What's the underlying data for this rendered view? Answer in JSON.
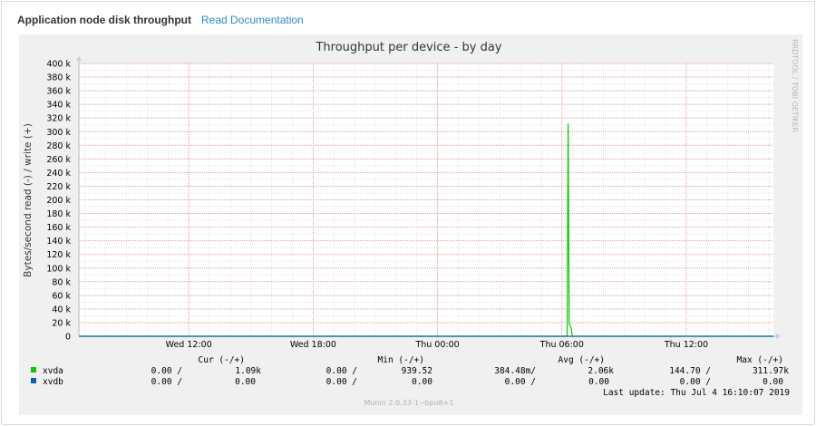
{
  "header": {
    "title": "Application node disk throughput",
    "doc_link": "Read Documentation"
  },
  "chart_data": {
    "type": "line",
    "title": "Throughput per device - by day",
    "ylabel": "Bytes/second read (-) / write (+)",
    "ylim": [
      0,
      400000
    ],
    "y_ticks": [
      {
        "value": 0,
        "label": "0"
      },
      {
        "value": 20000,
        "label": "20 k"
      },
      {
        "value": 40000,
        "label": "40 k"
      },
      {
        "value": 60000,
        "label": "60 k"
      },
      {
        "value": 80000,
        "label": "80 k"
      },
      {
        "value": 100000,
        "label": "100 k"
      },
      {
        "value": 120000,
        "label": "120 k"
      },
      {
        "value": 140000,
        "label": "140 k"
      },
      {
        "value": 160000,
        "label": "160 k"
      },
      {
        "value": 180000,
        "label": "180 k"
      },
      {
        "value": 200000,
        "label": "200 k"
      },
      {
        "value": 220000,
        "label": "220 k"
      },
      {
        "value": 240000,
        "label": "240 k"
      },
      {
        "value": 260000,
        "label": "260 k"
      },
      {
        "value": 280000,
        "label": "280 k"
      },
      {
        "value": 300000,
        "label": "300 k"
      },
      {
        "value": 320000,
        "label": "320 k"
      },
      {
        "value": 340000,
        "label": "340 k"
      },
      {
        "value": 360000,
        "label": "360 k"
      },
      {
        "value": 380000,
        "label": "380 k"
      },
      {
        "value": 400000,
        "label": "400 k"
      }
    ],
    "x_range_hours": [
      6.7,
      40.2
    ],
    "x_ticks": [
      {
        "hour": 12,
        "label": "Wed 12:00"
      },
      {
        "hour": 18,
        "label": "Wed 18:00"
      },
      {
        "hour": 24,
        "label": "Thu 00:00"
      },
      {
        "hour": 30,
        "label": "Thu 06:00"
      },
      {
        "hour": 36,
        "label": "Thu 12:00"
      }
    ],
    "series": [
      {
        "name": "xvda",
        "color": "#00cc00",
        "points": [
          [
            6.7,
            0
          ],
          [
            30.25,
            0
          ],
          [
            30.3,
            311970
          ],
          [
            30.35,
            18000
          ],
          [
            30.45,
            12000
          ],
          [
            30.5,
            0
          ],
          [
            40.2,
            0
          ]
        ]
      },
      {
        "name": "xvdb",
        "color": "#0066b3",
        "points": [
          [
            6.7,
            0
          ],
          [
            40.2,
            0
          ]
        ]
      }
    ],
    "grid": true,
    "legend": {
      "headers": [
        "Cur (-/+)",
        "Min (-/+)",
        "Avg (-/+)",
        "Max (-/+)"
      ],
      "rows": [
        {
          "name": "xvda",
          "color": "#00cc00",
          "values": [
            "0.00 /",
            "1.09k",
            "0.00 /",
            "939.52",
            "384.48m/",
            "2.06k",
            "144.70 /",
            "311.97k"
          ]
        },
        {
          "name": "xvdb",
          "color": "#0066b3",
          "values": [
            "0.00 /",
            "0.00",
            "0.00 /",
            "0.00",
            "0.00 /",
            "0.00",
            "0.00 /",
            "0.00"
          ]
        }
      ]
    },
    "last_update": "Last update:  Thu Jul  4 16:10:07 2019",
    "watermark": "RRDTOOL / TOBI OETIKER",
    "footer": "Munin 2.0.33-1~bpo8+1"
  }
}
